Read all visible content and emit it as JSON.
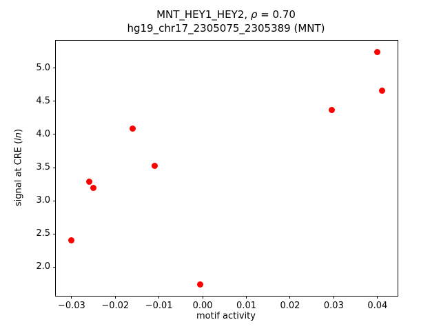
{
  "chart_data": {
    "type": "scatter",
    "title": "MNT_HEY1_HEY2, ρ = 0.70",
    "subtitle": "hg19_chr17_2305075_2305389 (MNT)",
    "title_parts": {
      "prefix": "MNT_HEY1_HEY2, ",
      "italic": "ρ",
      "suffix": " = 0.70"
    },
    "xlabel": "motif activity",
    "ylabel_parts": {
      "prefix": "signal at CRE (",
      "italic": "ln",
      "suffix": ")"
    },
    "marker_color": "#ff0000",
    "grid": false,
    "legend": "none",
    "xlim": [
      -0.0336,
      0.0446
    ],
    "ylim": [
      1.565,
      5.415
    ],
    "xticks": [
      {
        "value": -0.03,
        "label": "−0.03"
      },
      {
        "value": -0.02,
        "label": "−0.02"
      },
      {
        "value": -0.01,
        "label": "−0.01"
      },
      {
        "value": 0.0,
        "label": "0.00"
      },
      {
        "value": 0.01,
        "label": "0.01"
      },
      {
        "value": 0.02,
        "label": "0.02"
      },
      {
        "value": 0.03,
        "label": "0.03"
      },
      {
        "value": 0.04,
        "label": "0.04"
      }
    ],
    "yticks": [
      {
        "value": 2.0,
        "label": "2.0"
      },
      {
        "value": 2.5,
        "label": "2.5"
      },
      {
        "value": 3.0,
        "label": "3.0"
      },
      {
        "value": 3.5,
        "label": "3.5"
      },
      {
        "value": 4.0,
        "label": "4.0"
      },
      {
        "value": 4.5,
        "label": "4.5"
      },
      {
        "value": 5.0,
        "label": "5.0"
      }
    ],
    "points": [
      {
        "x": -0.03,
        "y": 2.4
      },
      {
        "x": -0.026,
        "y": 3.29
      },
      {
        "x": -0.025,
        "y": 3.19
      },
      {
        "x": -0.016,
        "y": 4.09
      },
      {
        "x": -0.011,
        "y": 3.53
      },
      {
        "x": -0.0005,
        "y": 1.74
      },
      {
        "x": 0.0295,
        "y": 4.37
      },
      {
        "x": 0.04,
        "y": 5.24
      },
      {
        "x": 0.041,
        "y": 4.66
      }
    ]
  }
}
